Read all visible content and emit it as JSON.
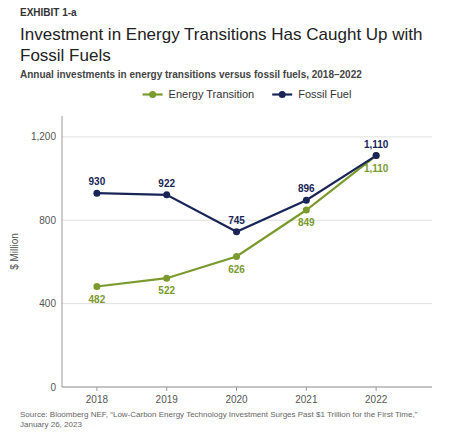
{
  "chart_data": {
    "type": "line",
    "annotations": [
      "EXHIBIT 1-a"
    ],
    "title": "Investment in Energy Transitions Has Caught Up with Fossil Fuels",
    "subtitle": "Annual investments in energy transitions versus fossil fuels, 2018–2022",
    "y_label": "$ Million",
    "source": "Source: Bloomberg NEF, “Low-Carbon Energy Technology Investment Surges Past $1 Trillion for the First Time,”\nJanuary 26, 2023",
    "x": [
      2018,
      2019,
      2020,
      2021,
      2022
    ],
    "xlim": [
      2017.5,
      2022.8
    ],
    "xticks": [
      2018,
      2019,
      2020,
      2021,
      2022
    ],
    "ylim": [
      0,
      1300
    ],
    "yticks": [
      0,
      400,
      800,
      {
        "value": 1200,
        "label": "1,200"
      }
    ],
    "grid": true,
    "legend": "top",
    "data_labels": true,
    "marker": "circle",
    "series": [
      {
        "name": "Energy Transition",
        "color": "#7a9a2e",
        "values": [
          482,
          522,
          626,
          849,
          1110
        ],
        "value_labels": [
          "482",
          "522",
          "626",
          "849",
          "1,110"
        ]
      },
      {
        "name": "Fossil Fuel",
        "color": "#1a2557",
        "values": [
          930,
          922,
          745,
          896,
          1110
        ],
        "value_labels": [
          "930",
          "922",
          "745",
          "896",
          "1,110"
        ]
      }
    ]
  }
}
